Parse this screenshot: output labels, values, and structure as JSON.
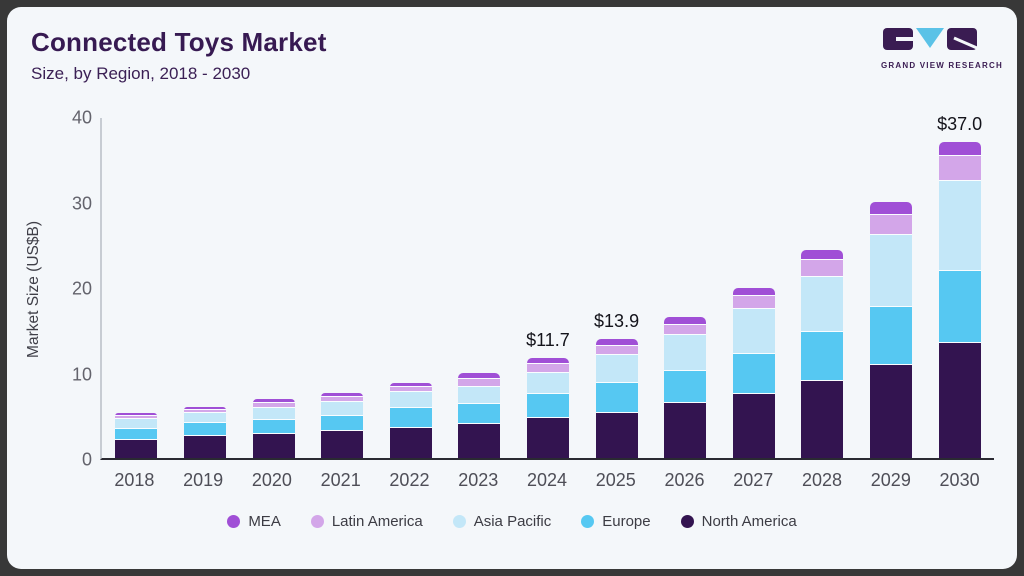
{
  "card": {
    "title": "Connected Toys Market",
    "subtitle": "Size, by Region, 2018 - 2030",
    "background": "#f4f7fa",
    "frame_color": "#383838"
  },
  "logo": {
    "caption": "GRAND VIEW RESEARCH",
    "block_color": "#3a1c52",
    "triangle_color": "#5bc2e7"
  },
  "chart_data": {
    "type": "bar",
    "stacked": true,
    "title": "Connected Toys Market Size, by Region, 2018 - 2030",
    "ylabel": "Market Size (US$B)",
    "ylim": [
      0,
      40
    ],
    "yticks": [
      0,
      10,
      20,
      30,
      40
    ],
    "grid": false,
    "legend_position": "bottom",
    "legend_order": [
      "MEA",
      "Latin America",
      "Asia Pacific",
      "Europe",
      "North America"
    ],
    "categories": [
      "2018",
      "2019",
      "2020",
      "2021",
      "2022",
      "2023",
      "2024",
      "2025",
      "2026",
      "2027",
      "2028",
      "2029",
      "2030"
    ],
    "series": [
      {
        "name": "North America",
        "color": "#331450",
        "values": [
          2.1,
          2.6,
          2.8,
          3.2,
          3.5,
          4.0,
          4.7,
          5.3,
          6.4,
          7.5,
          9.0,
          10.9,
          13.4
        ]
      },
      {
        "name": "Europe",
        "color": "#56c8f2",
        "values": [
          1.3,
          1.5,
          1.7,
          1.7,
          2.3,
          2.3,
          2.8,
          3.5,
          3.8,
          4.7,
          5.7,
          6.8,
          8.5
        ]
      },
      {
        "name": "Asia Pacific",
        "color": "#c3e7f8",
        "values": [
          1.2,
          1.2,
          1.4,
          1.7,
          1.9,
          2.0,
          2.5,
          3.3,
          4.2,
          5.2,
          6.5,
          8.4,
          10.5
        ]
      },
      {
        "name": "Latin America",
        "color": "#d3a6e9",
        "values": [
          0.3,
          0.3,
          0.5,
          0.5,
          0.6,
          0.9,
          1.0,
          1.0,
          1.2,
          1.5,
          2.0,
          2.3,
          2.9
        ]
      },
      {
        "name": "MEA",
        "color": "#a04fd6",
        "values": [
          0.4,
          0.4,
          0.5,
          0.5,
          0.5,
          0.8,
          0.7,
          0.8,
          0.9,
          1.0,
          1.1,
          1.5,
          1.7
        ]
      }
    ],
    "annotations": [
      {
        "category": "2024",
        "text": "$11.7"
      },
      {
        "category": "2025",
        "text": "$13.9"
      },
      {
        "category": "2030",
        "text": "$37.0"
      }
    ],
    "totals": [
      5.3,
      6.0,
      6.9,
      7.6,
      8.8,
      10.0,
      11.7,
      13.9,
      16.5,
      19.9,
      24.3,
      29.9,
      37.0
    ]
  }
}
